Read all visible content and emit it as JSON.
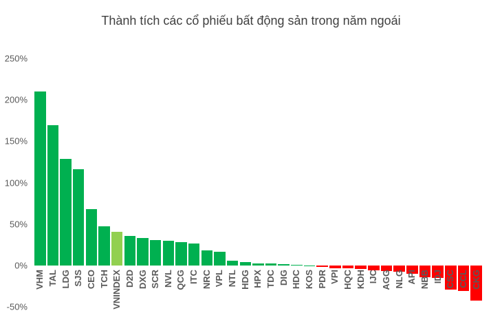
{
  "chart_data": {
    "type": "bar",
    "title": "Thành tích các cổ phiếu bất động sản trong năm ngoái",
    "xlabel": "",
    "ylabel": "",
    "ylim": [
      -50,
      250
    ],
    "yticks": [
      "250%",
      "200%",
      "150%",
      "100%",
      "50%",
      "0%",
      "-50%"
    ],
    "ytick_values": [
      250,
      200,
      150,
      100,
      50,
      0,
      -50
    ],
    "grid": false,
    "legend": null,
    "categories": [
      "VHM",
      "TAL",
      "LDG",
      "SJS",
      "CEO",
      "TCH",
      "VNINDEX",
      "D2D",
      "DXG",
      "SCR",
      "NVL",
      "QCG",
      "ITC",
      "NRC",
      "VPL",
      "NTL",
      "HDG",
      "HPX",
      "TDC",
      "DIG",
      "HDC",
      "KOS",
      "PDR",
      "VPI",
      "HQC",
      "KDH",
      "IJC",
      "AGG",
      "NLG",
      "API",
      "NBB",
      "IDJ",
      "CSC",
      "CCL",
      "CKG"
    ],
    "values": [
      210,
      169,
      129,
      116,
      68,
      47,
      41,
      36,
      33.5,
      31,
      29.5,
      28.5,
      26.5,
      18,
      16.5,
      5.5,
      4.5,
      2.3,
      2.2,
      2,
      1,
      0.3,
      -2,
      -3,
      -3.3,
      -4,
      -5.5,
      -7,
      -7.5,
      -10,
      -14,
      -15,
      -29,
      -31,
      -42
    ],
    "colors": {
      "positive": "#00b050",
      "benchmark": "#92d050",
      "negative": "#ff0000"
    },
    "benchmark_category": "VNINDEX"
  }
}
